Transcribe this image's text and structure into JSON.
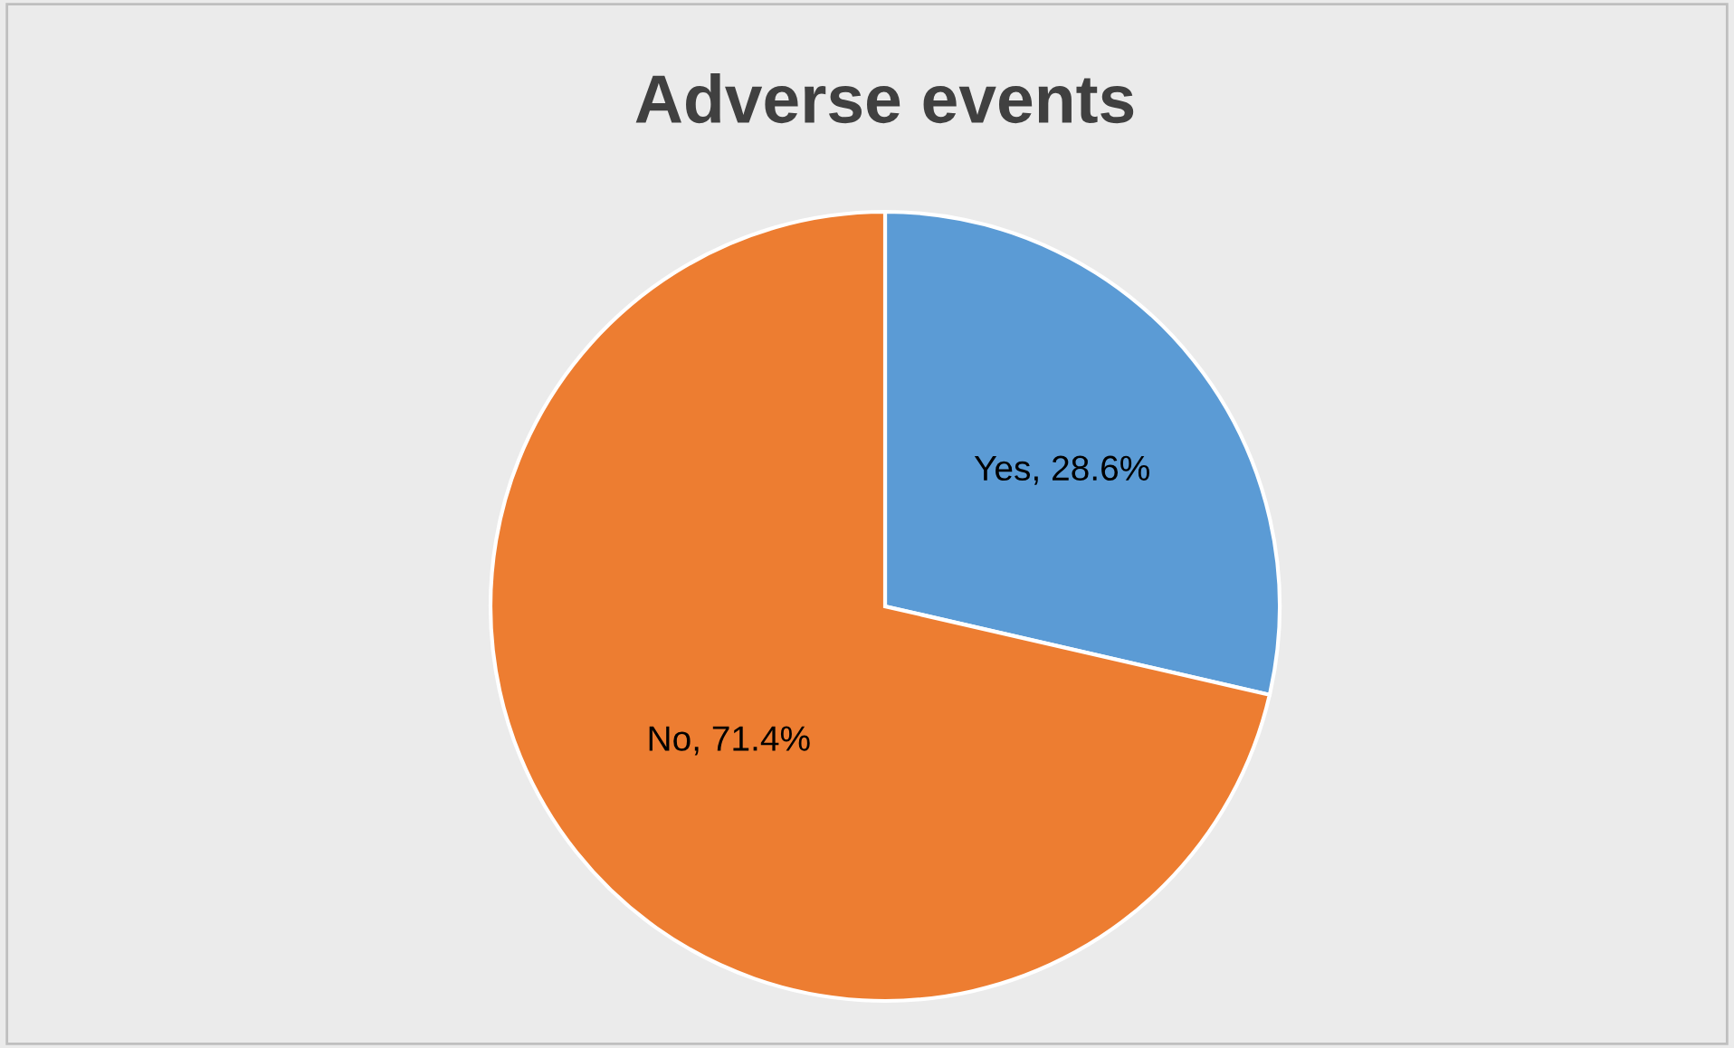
{
  "chart_data": {
    "type": "pie",
    "title": "Adverse events",
    "categories": [
      "Yes",
      "No"
    ],
    "values": [
      28.6,
      71.4
    ],
    "colors": [
      "#5b9bd5",
      "#ed7d31"
    ],
    "value_labels": [
      ", 28.6%",
      ", 71.4%"
    ],
    "legend": false
  }
}
